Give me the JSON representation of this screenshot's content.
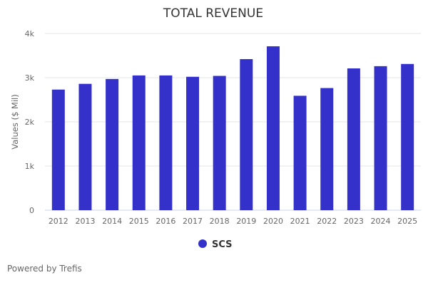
{
  "chart_data": {
    "type": "bar",
    "title": "TOTAL REVENUE",
    "xlabel": "",
    "ylabel": "Values ($ Mil)",
    "ylim": [
      0,
      4000
    ],
    "yticks": [
      0,
      1000,
      2000,
      3000,
      4000
    ],
    "ytick_labels": [
      "0",
      "1k",
      "2k",
      "3k",
      "4k"
    ],
    "grid": true,
    "categories": [
      "2012",
      "2013",
      "2014",
      "2015",
      "2016",
      "2017",
      "2018",
      "2019",
      "2020",
      "2021",
      "2022",
      "2023",
      "2024",
      "2025"
    ],
    "series": [
      {
        "name": "SCS",
        "color": "#3431cb",
        "values": [
          2730,
          2860,
          2970,
          3050,
          3050,
          3020,
          3040,
          3420,
          3710,
          2590,
          2765,
          3210,
          3260,
          3310
        ]
      }
    ],
    "legend": "bottom-center"
  },
  "credit": "Powered by Trefis"
}
